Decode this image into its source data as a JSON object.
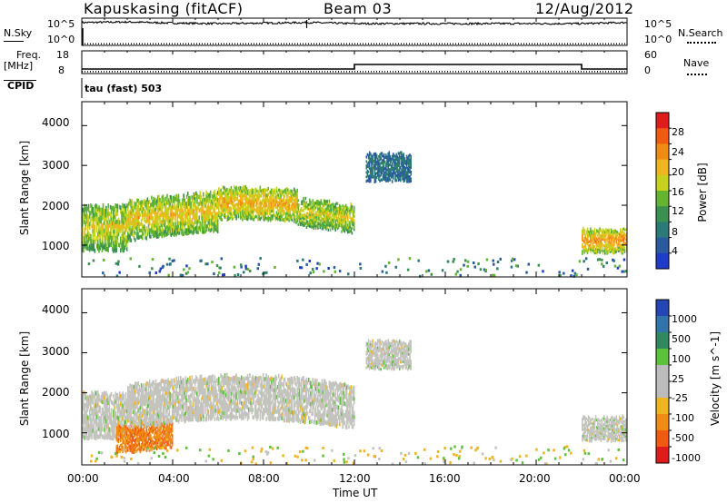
{
  "header": {
    "station": "Kapuskasing (fitACF)",
    "beam": "Beam 03",
    "date": "12/Aug/2012"
  },
  "top_panels": {
    "nsky_label": "N.Sky",
    "nsky_ticks": [
      "10^5",
      "10^0"
    ],
    "nsearch_label": "N.Search",
    "nsearch_ticks": [
      "10^5",
      "10^0"
    ],
    "freq_label": "Freq.",
    "freq_unit": "[MHz]",
    "freq_ticks": [
      "18",
      "8"
    ],
    "nave_label": "Nave",
    "nave_ticks": [
      "60",
      "0"
    ],
    "cpid_label": "CPID",
    "cpid_value": "tau (fast) 503"
  },
  "axes": {
    "ylabel": "Slant Range [km]",
    "yticks": [
      "4000",
      "3000",
      "2000",
      "1000"
    ],
    "xticks": [
      "00:00",
      "04:00",
      "08:00",
      "12:00",
      "16:00",
      "20:00",
      "00:00"
    ],
    "xlabel": "Time UT"
  },
  "colorbars": {
    "power": {
      "label": "Power [dB]",
      "ticks": [
        "28",
        "24",
        "20",
        "16",
        "12",
        "8",
        "4"
      ],
      "colors": [
        "#e01b1b",
        "#f05a12",
        "#f08c14",
        "#f0b41e",
        "#c8d21e",
        "#64b432",
        "#3c9150",
        "#2c7a78",
        "#2a5aa0",
        "#1e3cc8"
      ]
    },
    "velocity": {
      "label": "Velocity [m s^-1]",
      "ticks": [
        "1000",
        "500",
        "100",
        "25",
        "-25",
        "-100",
        "-500",
        "-1000"
      ],
      "colors": [
        "#2346b4",
        "#3273aa",
        "#2f8a60",
        "#5cc23c",
        "#bcbcbc",
        "#bcbcbc",
        "#f0b41e",
        "#f08c14",
        "#f05a12",
        "#e01b1b"
      ]
    }
  },
  "chart_data": [
    {
      "type": "line",
      "title": "N.Sky",
      "x_range_hours": [
        0,
        24
      ],
      "series": [
        {
          "name": "N.Sky",
          "x": [
            0,
            2,
            4,
            6,
            8,
            10,
            12,
            14,
            16,
            18,
            20,
            22,
            24
          ],
          "values": [
            4.2,
            4.3,
            4.1,
            4.0,
            4.1,
            4.2,
            4.0,
            4.0,
            4.0,
            4.0,
            4.0,
            4.0,
            4.2
          ]
        },
        {
          "name": "N.Search",
          "x": [
            0,
            24
          ],
          "values": [
            0.3,
            0.3
          ]
        }
      ]
    },
    {
      "type": "line",
      "title": "Freq.",
      "x_range_hours": [
        0,
        24
      ],
      "series": [
        {
          "name": "Freq",
          "x": [
            0,
            12,
            12,
            22,
            22,
            24
          ],
          "values": [
            10,
            10,
            12,
            12,
            10,
            10
          ]
        },
        {
          "name": "Nave",
          "x": [
            0,
            24
          ],
          "values": [
            5,
            5
          ]
        }
      ]
    },
    {
      "type": "heatmap",
      "title": "Power",
      "xlabel": "Time UT",
      "ylabel": "Slant Range [km]",
      "xlim_hours": [
        0,
        24
      ],
      "ylim_km": [
        200,
        4600
      ],
      "colorbar_range_db": [
        0,
        32
      ],
      "bands": [
        {
          "t0": 0.0,
          "t1": 2.0,
          "r_lo": 850,
          "r_hi": 2000,
          "level": 0.45
        },
        {
          "t0": 2.0,
          "t1": 6.0,
          "r_lo": 1100,
          "r_hi": 2100,
          "level": 0.5
        },
        {
          "t0": 6.0,
          "t1": 9.5,
          "r_lo": 1400,
          "r_hi": 2200,
          "level": 0.55
        },
        {
          "t0": 9.5,
          "t1": 12.0,
          "r_lo": 1300,
          "r_hi": 2000,
          "level": 0.45
        },
        {
          "t0": 12.5,
          "t1": 14.5,
          "r_lo": 2600,
          "r_hi": 3300,
          "level": 0.1
        },
        {
          "t0": 22.0,
          "t1": 24.0,
          "r_lo": 800,
          "r_hi": 1400,
          "level": 0.6
        }
      ]
    },
    {
      "type": "heatmap",
      "title": "Velocity",
      "xlabel": "Time UT",
      "ylabel": "Slant Range [km]",
      "xlim_hours": [
        0,
        24
      ],
      "ylim_km": [
        200,
        4600
      ],
      "colorbar_range_ms": [
        -1000,
        1000
      ],
      "bands": [
        {
          "t0": 0.0,
          "t1": 2.0,
          "r_lo": 850,
          "r_hi": 2000,
          "velocity": 0
        },
        {
          "t0": 1.5,
          "t1": 4.0,
          "r_lo": 500,
          "r_hi": 1200,
          "velocity": -300
        },
        {
          "t0": 2.0,
          "t1": 12.0,
          "r_lo": 1100,
          "r_hi": 2200,
          "velocity": 0
        },
        {
          "t0": 12.5,
          "t1": 14.5,
          "r_lo": 2600,
          "r_hi": 3300,
          "velocity": 0
        },
        {
          "t0": 22.0,
          "t1": 24.0,
          "r_lo": 800,
          "r_hi": 1400,
          "velocity": 0
        }
      ]
    }
  ]
}
